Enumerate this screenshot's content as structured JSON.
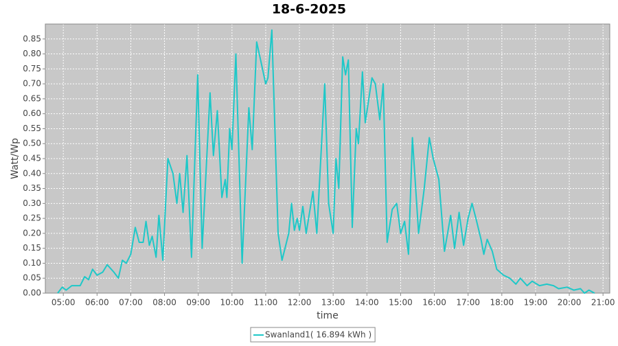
{
  "chart_data": {
    "type": "line",
    "title": "18-6-2025",
    "x_label": "time",
    "y_label": "Watt/Wp",
    "grid": true,
    "legend": "bottom",
    "xlim": [
      "04:28",
      "21:12"
    ],
    "xticks": [
      "05:00",
      "06:00",
      "07:00",
      "08:00",
      "09:00",
      "10:00",
      "11:00",
      "12:00",
      "13:00",
      "14:00",
      "15:00",
      "16:00",
      "17:00",
      "18:00",
      "19:00",
      "20:00",
      "21:00"
    ],
    "ylim": [
      0,
      0.9
    ],
    "yticks": [
      {
        "value": 0,
        "label": "0.00"
      },
      {
        "value": 0.05,
        "label": "0.05"
      },
      {
        "value": 0.1,
        "label": "0.10"
      },
      {
        "value": 0.15,
        "label": "0.15"
      },
      {
        "value": 0.2,
        "label": "0.20"
      },
      {
        "value": 0.25,
        "label": "0.25"
      },
      {
        "value": 0.3,
        "label": "0.30"
      },
      {
        "value": 0.35,
        "label": "0.35"
      },
      {
        "value": 0.4,
        "label": "0.40"
      },
      {
        "value": 0.45,
        "label": "0.45"
      },
      {
        "value": 0.5,
        "label": "0.50"
      },
      {
        "value": 0.55,
        "label": "0.55"
      },
      {
        "value": 0.6,
        "label": "0.60"
      },
      {
        "value": 0.65,
        "label": "0.65"
      },
      {
        "value": 0.7,
        "label": "0.70"
      },
      {
        "value": 0.75,
        "label": "0.75"
      },
      {
        "value": 0.8,
        "label": "0.80"
      },
      {
        "value": 0.85,
        "label": "0.85"
      }
    ],
    "x": [
      "04:50",
      "04:58",
      "05:05",
      "05:15",
      "05:30",
      "05:38",
      "05:45",
      "05:52",
      "06:00",
      "06:10",
      "06:18",
      "06:30",
      "06:38",
      "06:45",
      "06:52",
      "07:00",
      "07:08",
      "07:15",
      "07:22",
      "07:27",
      "07:33",
      "07:38",
      "07:45",
      "07:50",
      "07:57",
      "08:06",
      "08:15",
      "08:22",
      "08:27",
      "08:33",
      "08:40",
      "08:48",
      "08:59",
      "09:07",
      "09:21",
      "09:27",
      "09:34",
      "09:42",
      "09:48",
      "09:51",
      "09:56",
      "10:00",
      "10:07",
      "10:18",
      "10:30",
      "10:36",
      "10:44",
      "10:52",
      "11:00",
      "11:04",
      "11:11",
      "11:22",
      "11:29",
      "11:41",
      "11:46",
      "11:51",
      "11:56",
      "12:00",
      "12:06",
      "12:12",
      "12:24",
      "12:31",
      "12:45",
      "12:52",
      "13:00",
      "13:05",
      "13:10",
      "13:17",
      "13:22",
      "13:27",
      "13:34",
      "13:41",
      "13:45",
      "13:52",
      "13:57",
      "14:09",
      "14:15",
      "14:23",
      "14:29",
      "14:36",
      "14:45",
      "14:53",
      "15:00",
      "15:07",
      "15:14",
      "15:21",
      "15:32",
      "15:42",
      "15:51",
      "15:58",
      "16:08",
      "16:18",
      "16:29",
      "16:36",
      "16:44",
      "16:52",
      "17:00",
      "17:07",
      "17:14",
      "17:23",
      "17:28",
      "17:34",
      "17:43",
      "17:51",
      "18:03",
      "18:14",
      "18:25",
      "18:33",
      "18:45",
      "18:54",
      "19:07",
      "19:20",
      "19:32",
      "19:41",
      "19:56",
      "20:08",
      "20:20",
      "20:27",
      "20:35",
      "20:45"
    ],
    "series": [
      {
        "name": "Swanland1( 16.894 kWh )",
        "color": "#1ec8c8",
        "values": [
          0,
          0.02,
          0.01,
          0.025,
          0.025,
          0.055,
          0.045,
          0.08,
          0.06,
          0.07,
          0.095,
          0.07,
          0.05,
          0.11,
          0.1,
          0.13,
          0.22,
          0.17,
          0.17,
          0.24,
          0.16,
          0.19,
          0.12,
          0.26,
          0.11,
          0.45,
          0.4,
          0.3,
          0.4,
          0.27,
          0.46,
          0.12,
          0.73,
          0.15,
          0.67,
          0.46,
          0.61,
          0.32,
          0.38,
          0.32,
          0.55,
          0.48,
          0.8,
          0.1,
          0.62,
          0.48,
          0.84,
          0.77,
          0.7,
          0.72,
          0.88,
          0.2,
          0.11,
          0.2,
          0.3,
          0.21,
          0.25,
          0.21,
          0.29,
          0.2,
          0.34,
          0.2,
          0.7,
          0.3,
          0.2,
          0.45,
          0.35,
          0.79,
          0.73,
          0.78,
          0.22,
          0.55,
          0.5,
          0.74,
          0.57,
          0.72,
          0.7,
          0.58,
          0.7,
          0.17,
          0.28,
          0.3,
          0.2,
          0.24,
          0.13,
          0.52,
          0.2,
          0.35,
          0.52,
          0.45,
          0.38,
          0.14,
          0.26,
          0.15,
          0.27,
          0.16,
          0.25,
          0.3,
          0.25,
          0.18,
          0.13,
          0.18,
          0.14,
          0.08,
          0.06,
          0.05,
          0.03,
          0.05,
          0.025,
          0.04,
          0.025,
          0.03,
          0.025,
          0.015,
          0.02,
          0.01,
          0.015,
          0,
          0.01,
          0
        ]
      }
    ]
  }
}
